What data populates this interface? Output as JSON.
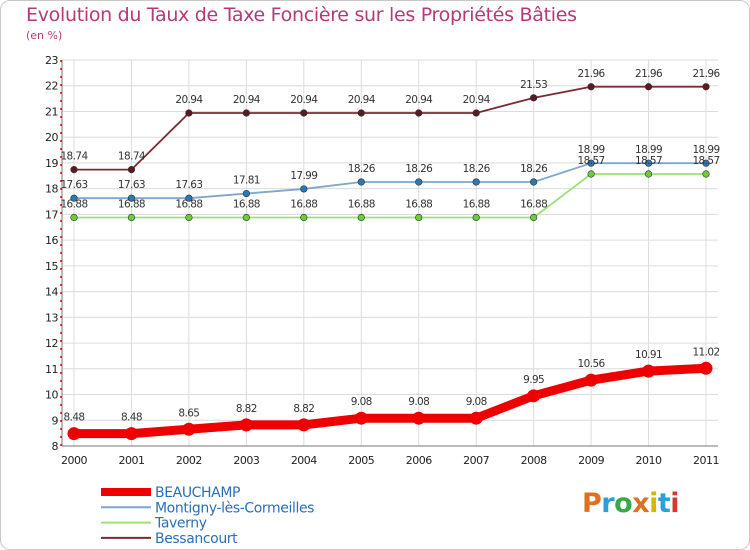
{
  "title": "Evolution du Taux de Taxe Foncière sur les Propriétés Bâties",
  "subtitle": "(en %)",
  "logo": {
    "text": "Proxiti",
    "colors": [
      "#e07020",
      "#2a9fd8",
      "#3aa84a",
      "#e07020",
      "#d6b400",
      "#2a9fd8",
      "#d33a2a"
    ]
  },
  "chart_data": {
    "type": "line",
    "title": "Evolution du Taux de Taxe Foncière sur les Propriétés Bâties",
    "ylabel": "(en %)",
    "xlabel": "",
    "x": [
      "2000",
      "2001",
      "2002",
      "2003",
      "2004",
      "2005",
      "2006",
      "2007",
      "2008",
      "2009",
      "2010",
      "2011"
    ],
    "yticks": [
      "8",
      "9",
      "10",
      "11",
      "12",
      "13",
      "14",
      "15",
      "16",
      "17",
      "18",
      "19",
      "20",
      "21",
      "22",
      "23"
    ],
    "ylim": [
      8,
      23
    ],
    "grid": true,
    "legend_position": "bottom-left",
    "series": [
      {
        "name": "Bessancourt",
        "color": "#7a2a30",
        "marker_color": "#5a1a20",
        "values": [
          18.74,
          18.74,
          20.94,
          20.94,
          20.94,
          20.94,
          20.94,
          20.94,
          21.53,
          21.96,
          21.96,
          21.96
        ],
        "labels": [
          "18.74",
          "18.74",
          "20.94",
          "20.94",
          "20.94",
          "20.94",
          "20.94",
          "20.94",
          "21.53",
          "21.96",
          "21.96",
          "21.96"
        ]
      },
      {
        "name": "Montigny-lès-Cormeilles",
        "color": "#7fa6cc",
        "marker_color": "#2a78b8",
        "values": [
          17.63,
          17.63,
          17.63,
          17.81,
          17.99,
          18.26,
          18.26,
          18.26,
          18.26,
          18.99,
          18.99,
          18.99
        ],
        "labels": [
          "17.63",
          "17.63",
          "17.63",
          "17.81",
          "17.99",
          "18.26",
          "18.26",
          "18.26",
          "18.26",
          "18.99",
          "18.99",
          "18.99"
        ]
      },
      {
        "name": "Taverny",
        "color": "#9ee07a",
        "marker_color": "#6ccc3c",
        "values": [
          16.88,
          16.88,
          16.88,
          16.88,
          16.88,
          16.88,
          16.88,
          16.88,
          16.88,
          18.57,
          18.57,
          18.57
        ],
        "labels": [
          "16.88",
          "16.88",
          "16.88",
          "16.88",
          "16.88",
          "16.88",
          "16.88",
          "16.88",
          "16.88",
          "18.57",
          "18.57",
          "18.57"
        ]
      },
      {
        "name": "BEAUCHAMP",
        "color": "#ee0000",
        "marker_color": "#ee0000",
        "values": [
          8.48,
          8.48,
          8.65,
          8.82,
          8.82,
          9.08,
          9.08,
          9.08,
          9.95,
          10.56,
          10.91,
          11.02
        ],
        "labels": [
          "8.48",
          "8.48",
          "8.65",
          "8.82",
          "8.82",
          "9.08",
          "9.08",
          "9.08",
          "9.95",
          "10.56",
          "10.91",
          "11.02"
        ]
      }
    ],
    "legend": [
      {
        "name": "BEAUCHAMP",
        "color": "#ee0000"
      },
      {
        "name": "Montigny-lès-Cormeilles",
        "color": "#7fa6cc"
      },
      {
        "name": "Taverny",
        "color": "#9ee07a"
      },
      {
        "name": "Bessancourt",
        "color": "#7a2a30"
      }
    ]
  }
}
